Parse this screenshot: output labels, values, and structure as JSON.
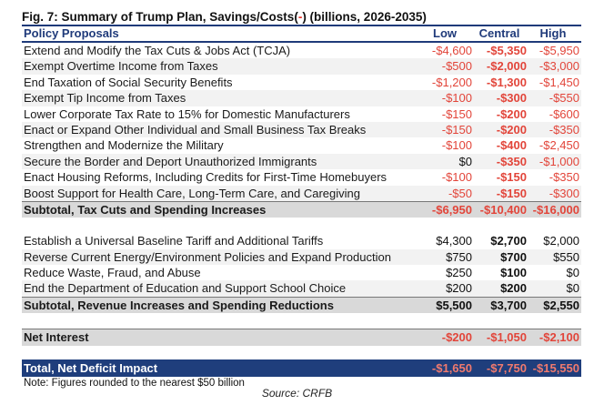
{
  "title_main": "Fig. 7: Summary of Trump Plan, Savings/Costs(",
  "title_neg": "-",
  "title_end": ") (billions, 2026-2035)",
  "columns": {
    "label": "Policy Proposals",
    "low": "Low",
    "central": "Central",
    "high": "High"
  },
  "section1": [
    {
      "label": "Extend and Modify the Tax Cuts & Jobs Act (TCJA)",
      "low": "-$4,600",
      "central": "-$5,350",
      "high": "-$5,950"
    },
    {
      "label": "Exempt Overtime Income from Taxes",
      "low": "-$500",
      "central": "-$2,000",
      "high": "-$3,000"
    },
    {
      "label": "End Taxation of Social Security Benefits",
      "low": "-$1,200",
      "central": "-$1,300",
      "high": "-$1,450"
    },
    {
      "label": "Exempt Tip Income from Taxes",
      "low": "-$100",
      "central": "-$300",
      "high": "-$550"
    },
    {
      "label": "Lower Corporate Tax Rate to 15% for Domestic Manufacturers",
      "low": "-$150",
      "central": "-$200",
      "high": "-$600"
    },
    {
      "label": "Enact or Expand Other Individual and Small Business Tax Breaks",
      "low": "-$150",
      "central": "-$200",
      "high": "-$350"
    },
    {
      "label": "Strengthen and Modernize the Military",
      "low": "-$100",
      "central": "-$400",
      "high": "-$2,450"
    },
    {
      "label": "Secure the Border and Deport Unauthorized Immigrants",
      "low": "$0",
      "central": "-$350",
      "high": "-$1,000"
    },
    {
      "label": "Enact Housing Reforms, Including Credits for First-Time Homebuyers",
      "low": "-$100",
      "central": "-$150",
      "high": "-$350"
    },
    {
      "label": "Boost Support for Health Care, Long-Term Care, and Caregiving",
      "low": "-$50",
      "central": "-$150",
      "high": "-$300"
    }
  ],
  "subtotal1": {
    "label": "Subtotal, Tax Cuts and Spending Increases",
    "low": "-$6,950",
    "central": "-$10,400",
    "high": "-$16,000"
  },
  "section2": [
    {
      "label": "Establish a Universal Baseline Tariff and Additional Tariffs",
      "low": "$4,300",
      "central": "$2,700",
      "high": "$2,000"
    },
    {
      "label": "Reverse Current Energy/Environment Policies and Expand Production",
      "low": "$750",
      "central": "$700",
      "high": "$550"
    },
    {
      "label": "Reduce Waste, Fraud, and Abuse",
      "low": "$250",
      "central": "$100",
      "high": "$0"
    },
    {
      "label": "End the Department of Education and Support School Choice",
      "low": "$200",
      "central": "$200",
      "high": "$0"
    }
  ],
  "subtotal2": {
    "label": "Subtotal, Revenue Increases and Spending Reductions",
    "low": "$5,500",
    "central": "$3,700",
    "high": "$2,550"
  },
  "net_interest": {
    "label": "Net Interest",
    "low": "-$200",
    "central": "-$1,050",
    "high": "-$2,100"
  },
  "total": {
    "label": "Total, Net Deficit Impact",
    "low": "-$1,650",
    "central": "-$7,750",
    "high": "-$15,550"
  },
  "note": "Note: Figures rounded to the nearest $50 billion",
  "source": "Source: CRFB",
  "colors": {
    "header_blue": "#1f3a7a",
    "negative_red": "#e2453a",
    "total_bg": "#1f3e7c",
    "subtotal_bg": "#d9d9d9"
  }
}
